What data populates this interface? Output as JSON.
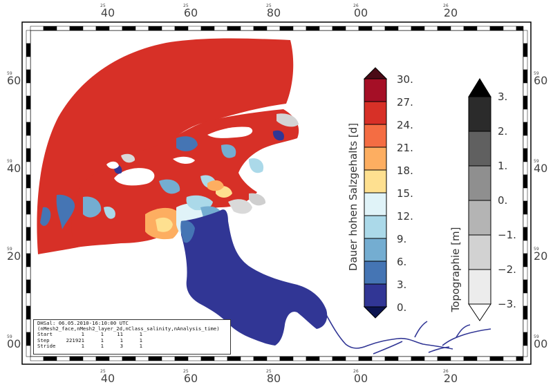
{
  "map": {
    "top_axis_labels": [
      {
        "small": "25",
        "text": "40"
      },
      {
        "small": "25",
        "text": "60"
      },
      {
        "small": "25",
        "text": "80"
      },
      {
        "small": "26",
        "text": "00"
      },
      {
        "small": "26",
        "text": "20"
      }
    ],
    "bottom_axis_labels": [
      {
        "small": "25",
        "text": "40"
      },
      {
        "small": "25",
        "text": "60"
      },
      {
        "small": "25",
        "text": "80"
      },
      {
        "small": "26",
        "text": "00"
      },
      {
        "small": "26",
        "text": "20"
      }
    ],
    "left_axis_labels": [
      {
        "small": "59",
        "text": "60"
      },
      {
        "small": "59",
        "text": "40"
      },
      {
        "small": "59",
        "text": "20"
      },
      {
        "small": "59",
        "text": "00"
      }
    ],
    "right_axis_labels": [
      {
        "small": "59",
        "text": "60"
      },
      {
        "small": "59",
        "text": "40"
      },
      {
        "small": "59",
        "text": "20"
      },
      {
        "small": "59",
        "text": "00"
      }
    ]
  },
  "salinity_legend": {
    "title": "Dauer hohen Salzgehalts [d]",
    "ticks": [
      "30.",
      "27.",
      "24.",
      "21.",
      "18.",
      "15.",
      "12.",
      "9.",
      "6.",
      "3.",
      "0."
    ],
    "colors": [
      "#4a0a16",
      "#a50f26",
      "#d73027",
      "#f46d43",
      "#fdae61",
      "#fee090",
      "#e0f3f8",
      "#abd9e9",
      "#74add1",
      "#4575b4",
      "#313695",
      "#0c1450"
    ]
  },
  "topo_legend": {
    "title": "Topographie [m]",
    "ticks": [
      "3.",
      "2.",
      "1.",
      "0.",
      "−1.",
      "−2.",
      "−3."
    ],
    "colors": [
      "#000000",
      "#2b2b2b",
      "#606060",
      "#8f8f8f",
      "#b4b4b4",
      "#d2d2d2",
      "#ececec",
      "#ffffff"
    ]
  },
  "info": {
    "header": "DHSal: 06.05.2010-16:10:00 UTC",
    "variables": "(nMesh2_face,nMesh2_layer_2d,nClass_salinity,nAnalysis_time)",
    "rows": [
      {
        "label": "Start",
        "v1": "1",
        "v2": "1",
        "v3": "11",
        "v4": "1"
      },
      {
        "label": "Step",
        "v1": "221921",
        "v2": "1",
        "v3": "1",
        "v4": "1"
      },
      {
        "label": "Stride",
        "v1": "1",
        "v2": "1",
        "v3": "3",
        "v4": "1"
      }
    ]
  }
}
